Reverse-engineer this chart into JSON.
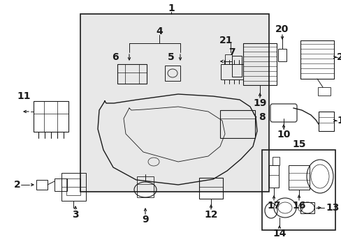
{
  "bg_color": "#ffffff",
  "fig_width": 4.89,
  "fig_height": 3.6,
  "dpi": 100,
  "line_color": "#1a1a1a",
  "fill_color": "#e0e0e0",
  "font_size": 8.5
}
